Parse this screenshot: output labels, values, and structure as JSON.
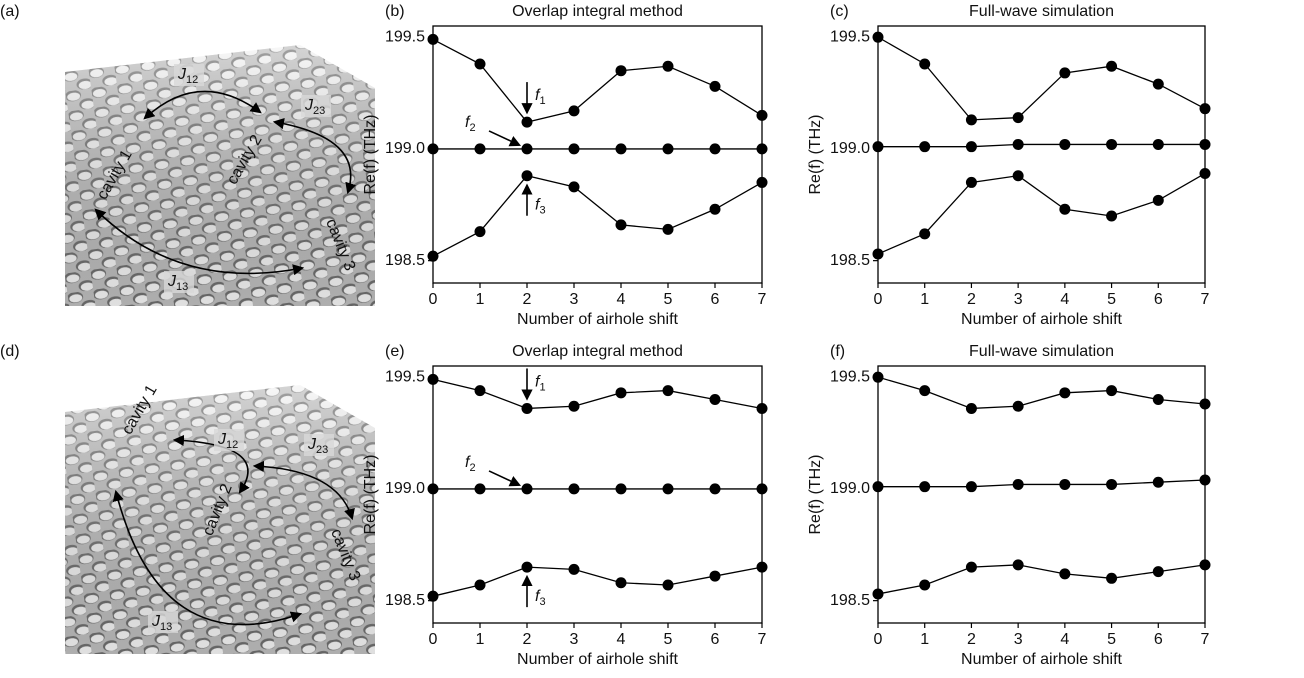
{
  "chart_data": [
    {
      "type": "line",
      "panel": "(b)",
      "title": "Overlap integral method",
      "xlabel": "Number of airhole shift",
      "ylabel": "Re(f) (THz)",
      "x": [
        0,
        1,
        2,
        3,
        4,
        5,
        6,
        7
      ],
      "xlim": [
        0,
        7
      ],
      "xticks": [
        0,
        1,
        2,
        3,
        4,
        5,
        6,
        7
      ],
      "ylim": [
        198.4,
        199.55
      ],
      "yticks": [
        198.5,
        {
          "value": 199,
          "label": "199.0"
        },
        199.5
      ],
      "series": [
        {
          "color": "#000000",
          "values": [
            199.49,
            199.38,
            199.12,
            199.17,
            199.35,
            199.37,
            199.28,
            199.15
          ]
        },
        {
          "color": "#000000",
          "values": [
            199.0,
            199.0,
            199.0,
            199.0,
            199.0,
            199.0,
            199.0,
            199.0
          ]
        },
        {
          "color": "#000000",
          "values": [
            198.52,
            198.63,
            198.88,
            198.83,
            198.66,
            198.64,
            198.73,
            198.85
          ]
        }
      ],
      "annotations": [
        {
          "symbol": "f",
          "subscript": "1"
        },
        {
          "symbol": "f",
          "subscript": "2"
        },
        {
          "symbol": "f",
          "subscript": "3"
        }
      ]
    },
    {
      "type": "line",
      "panel": "(c)",
      "title": "Full-wave simulation",
      "xlabel": "Number of airhole shift",
      "ylabel": "Re(f) (THz)",
      "x": [
        0,
        1,
        2,
        3,
        4,
        5,
        6,
        7
      ],
      "xlim": [
        0,
        7
      ],
      "xticks": [
        0,
        1,
        2,
        3,
        4,
        5,
        6,
        7
      ],
      "ylim": [
        198.4,
        199.55
      ],
      "yticks": [
        198.5,
        {
          "value": 199,
          "label": "199.0"
        },
        199.5
      ],
      "series": [
        {
          "color": "#000000",
          "values": [
            199.5,
            199.38,
            199.13,
            199.14,
            199.34,
            199.37,
            199.29,
            199.18
          ]
        },
        {
          "color": "#000000",
          "values": [
            199.01,
            199.01,
            199.01,
            199.02,
            199.02,
            199.02,
            199.02,
            199.02
          ]
        },
        {
          "color": "#000000",
          "values": [
            198.53,
            198.62,
            198.85,
            198.88,
            198.73,
            198.7,
            198.77,
            198.89
          ]
        }
      ]
    },
    {
      "type": "line",
      "panel": "(e)",
      "title": "Overlap integral method",
      "xlabel": "Number of airhole shift",
      "ylabel": "Re(f) (THz)",
      "x": [
        0,
        1,
        2,
        3,
        4,
        5,
        6,
        7
      ],
      "xlim": [
        0,
        7
      ],
      "xticks": [
        0,
        1,
        2,
        3,
        4,
        5,
        6,
        7
      ],
      "ylim": [
        198.4,
        199.55
      ],
      "yticks": [
        198.5,
        {
          "value": 199,
          "label": "199.0"
        },
        199.5
      ],
      "series": [
        {
          "color": "#000000",
          "values": [
            199.49,
            199.44,
            199.36,
            199.37,
            199.43,
            199.44,
            199.4,
            199.36
          ]
        },
        {
          "color": "#000000",
          "values": [
            199.0,
            199.0,
            199.0,
            199.0,
            199.0,
            199.0,
            199.0,
            199.0
          ]
        },
        {
          "color": "#000000",
          "values": [
            198.52,
            198.57,
            198.65,
            198.64,
            198.58,
            198.57,
            198.61,
            198.65
          ]
        }
      ],
      "annotations": [
        {
          "symbol": "f",
          "subscript": "1"
        },
        {
          "symbol": "f",
          "subscript": "2"
        },
        {
          "symbol": "f",
          "subscript": "3"
        }
      ]
    },
    {
      "type": "line",
      "panel": "(f)",
      "title": "Full-wave simulation",
      "xlabel": "Number of airhole shift",
      "ylabel": "Re(f) (THz)",
      "x": [
        0,
        1,
        2,
        3,
        4,
        5,
        6,
        7
      ],
      "xlim": [
        0,
        7
      ],
      "xticks": [
        0,
        1,
        2,
        3,
        4,
        5,
        6,
        7
      ],
      "ylim": [
        198.4,
        199.55
      ],
      "yticks": [
        198.5,
        {
          "value": 199,
          "label": "199.0"
        },
        199.5
      ],
      "series": [
        {
          "color": "#000000",
          "values": [
            199.5,
            199.44,
            199.36,
            199.37,
            199.43,
            199.44,
            199.4,
            199.38
          ]
        },
        {
          "color": "#000000",
          "values": [
            199.01,
            199.01,
            199.01,
            199.02,
            199.02,
            199.02,
            199.03,
            199.04
          ]
        },
        {
          "color": "#000000",
          "values": [
            198.53,
            198.57,
            198.65,
            198.66,
            198.62,
            198.6,
            198.63,
            198.66
          ]
        }
      ]
    }
  ],
  "illustrations": [
    {
      "panel": "(a)",
      "cavities": [
        "cavity 1",
        "cavity 2",
        "cavity 3"
      ],
      "couplings": [
        {
          "symbol": "J",
          "subscript": "12"
        },
        {
          "symbol": "J",
          "subscript": "23"
        },
        {
          "symbol": "J",
          "subscript": "13"
        }
      ]
    },
    {
      "panel": "(d)",
      "cavities": [
        "cavity 1",
        "cavity 2",
        "cavity 3"
      ],
      "couplings": [
        {
          "symbol": "J",
          "subscript": "12"
        },
        {
          "symbol": "J",
          "subscript": "23"
        },
        {
          "symbol": "J",
          "subscript": "13"
        }
      ]
    }
  ]
}
